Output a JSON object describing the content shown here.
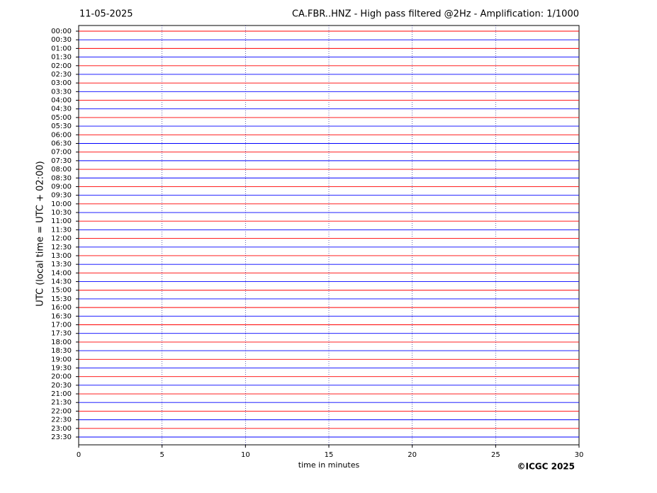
{
  "chart_data": {
    "type": "helicorder",
    "date": "11-05-2025",
    "title": "CA.FBR..HNZ - High pass filtered @2Hz - Amplification: 1/1000",
    "ylabel": "UTC (local time = UTC + 02:00)",
    "xlabel": "time in minutes",
    "copyright": "©ICGC 2025",
    "categories": [
      "00:00",
      "00:30",
      "01:00",
      "01:30",
      "02:00",
      "02:30",
      "03:00",
      "03:30",
      "04:00",
      "04:30",
      "05:00",
      "05:30",
      "06:00",
      "06:30",
      "07:00",
      "07:30",
      "08:00",
      "08:30",
      "09:00",
      "09:30",
      "10:00",
      "10:30",
      "11:00",
      "11:30",
      "12:00",
      "12:30",
      "13:00",
      "13:30",
      "14:00",
      "14:30",
      "15:00",
      "15:30",
      "16:00",
      "16:30",
      "17:00",
      "17:30",
      "18:00",
      "18:30",
      "19:00",
      "19:30",
      "20:00",
      "20:30",
      "21:00",
      "21:30",
      "22:00",
      "22:30",
      "23:00",
      "23:30"
    ],
    "colors": [
      "#ff0000",
      "#0000ff"
    ],
    "xlim": [
      0,
      30
    ],
    "xticks": [
      0,
      5,
      10,
      15,
      20,
      25,
      30
    ],
    "grid": true
  }
}
